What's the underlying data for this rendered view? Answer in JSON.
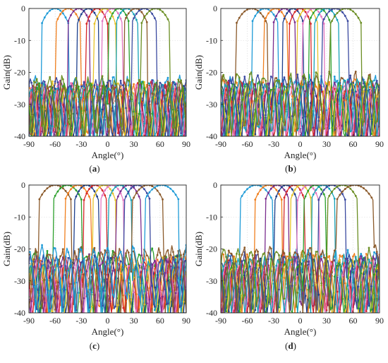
{
  "figure": {
    "panels": [
      {
        "label": "(a)",
        "label_parts": [
          "(",
          "a",
          ")"
        ]
      },
      {
        "label": "(b)",
        "label_parts": [
          "(",
          "b",
          ")"
        ]
      },
      {
        "label": "(c)",
        "label_parts": [
          "(",
          "c",
          ")"
        ]
      },
      {
        "label": "(d)",
        "label_parts": [
          "(",
          "d",
          ")"
        ]
      }
    ]
  },
  "chart_data": [
    {
      "panel": "a",
      "type": "line",
      "xlabel": "Angle(°)",
      "ylabel": "Gain(dB)",
      "xlim": [
        -90,
        90
      ],
      "ylim": [
        -40,
        0
      ],
      "xticks": [
        -90,
        -60,
        -30,
        0,
        30,
        60,
        90
      ],
      "yticks": [
        0,
        -10,
        -20,
        -30,
        -40
      ],
      "grid": true,
      "series": [
        {
          "color": "#1f9bd7",
          "peak_angle": -60,
          "beamwidth": 28,
          "sidelobe": -20
        },
        {
          "color": "#f07f1e",
          "peak_angle": -45,
          "beamwidth": 26,
          "sidelobe": -22
        },
        {
          "color": "#7b2d8e",
          "peak_angle": -33,
          "beamwidth": 24,
          "sidelobe": -22
        },
        {
          "color": "#1d3f8c",
          "peak_angle": -22,
          "beamwidth": 23,
          "sidelobe": -23
        },
        {
          "color": "#d62728",
          "peak_angle": -12,
          "beamwidth": 22,
          "sidelobe": -22
        },
        {
          "color": "#e6c229",
          "peak_angle": -3,
          "beamwidth": 22,
          "sidelobe": -22
        },
        {
          "color": "#e377c2",
          "peak_angle": 5,
          "beamwidth": 22,
          "sidelobe": -22
        },
        {
          "color": "#2ca02c",
          "peak_angle": 13,
          "beamwidth": 22,
          "sidelobe": -22
        },
        {
          "color": "#17a2b8",
          "peak_angle": 22,
          "beamwidth": 23,
          "sidelobe": -22
        },
        {
          "color": "#8b5a2b",
          "peak_angle": 32,
          "beamwidth": 25,
          "sidelobe": -22
        },
        {
          "color": "#3b4aa0",
          "peak_angle": 42,
          "beamwidth": 27,
          "sidelobe": -21
        },
        {
          "color": "#6b8e23",
          "peak_angle": 55,
          "beamwidth": 30,
          "sidelobe": -20
        }
      ]
    },
    {
      "panel": "b",
      "type": "line",
      "xlabel": "Angle(°)",
      "ylabel": "Gain(dB)",
      "xlim": [
        -90,
        90
      ],
      "ylim": [
        -40,
        0
      ],
      "xticks": [
        -90,
        -60,
        -30,
        0,
        30,
        60,
        90
      ],
      "yticks": [
        0,
        -10,
        -20,
        -30,
        -40
      ],
      "grid": true,
      "series": [
        {
          "color": "#8b5a2b",
          "peak_angle": -55,
          "beamwidth": 32,
          "sidelobe": -19
        },
        {
          "color": "#1f9bd7",
          "peak_angle": -40,
          "beamwidth": 28,
          "sidelobe": -20
        },
        {
          "color": "#f07f1e",
          "peak_angle": -28,
          "beamwidth": 25,
          "sidelobe": -21
        },
        {
          "color": "#7b2d8e",
          "peak_angle": -18,
          "beamwidth": 23,
          "sidelobe": -22
        },
        {
          "color": "#1d3f8c",
          "peak_angle": -8,
          "beamwidth": 22,
          "sidelobe": -22
        },
        {
          "color": "#d62728",
          "peak_angle": 0,
          "beamwidth": 22,
          "sidelobe": -22
        },
        {
          "color": "#e6c229",
          "peak_angle": 8,
          "beamwidth": 22,
          "sidelobe": -22
        },
        {
          "color": "#e377c2",
          "peak_angle": 15,
          "beamwidth": 22,
          "sidelobe": -22
        },
        {
          "color": "#2ca02c",
          "peak_angle": 22,
          "beamwidth": 23,
          "sidelobe": -22
        },
        {
          "color": "#17a2b8",
          "peak_angle": 30,
          "beamwidth": 25,
          "sidelobe": -21
        },
        {
          "color": "#3b4aa0",
          "peak_angle": 40,
          "beamwidth": 28,
          "sidelobe": -20
        },
        {
          "color": "#6b8e23",
          "peak_angle": 52,
          "beamwidth": 32,
          "sidelobe": -19
        }
      ]
    },
    {
      "panel": "c",
      "type": "line",
      "xlabel": "Angle(°)",
      "ylabel": "Gain(dB)",
      "xlim": [
        -90,
        90
      ],
      "ylim": [
        -40,
        0
      ],
      "xticks": [
        -90,
        -60,
        -30,
        0,
        30,
        60,
        90
      ],
      "yticks": [
        0,
        -10,
        -20,
        -30,
        -40
      ],
      "grid": true,
      "series": [
        {
          "color": "#8b5a2b",
          "peak_angle": -60,
          "beamwidth": 34,
          "sidelobe": -18
        },
        {
          "color": "#2ca02c",
          "peak_angle": -46,
          "beamwidth": 30,
          "sidelobe": -19
        },
        {
          "color": "#f07f1e",
          "peak_angle": -34,
          "beamwidth": 27,
          "sidelobe": -21
        },
        {
          "color": "#1d3f8c",
          "peak_angle": -24,
          "beamwidth": 25,
          "sidelobe": -21
        },
        {
          "color": "#d62728",
          "peak_angle": -14,
          "beamwidth": 24,
          "sidelobe": -22
        },
        {
          "color": "#e6c229",
          "peak_angle": -4,
          "beamwidth": 24,
          "sidelobe": -22
        },
        {
          "color": "#e377c2",
          "peak_angle": 5,
          "beamwidth": 24,
          "sidelobe": -22
        },
        {
          "color": "#17a2b8",
          "peak_angle": 14,
          "beamwidth": 24,
          "sidelobe": -22
        },
        {
          "color": "#7b2d8e",
          "peak_angle": 24,
          "beamwidth": 25,
          "sidelobe": -21
        },
        {
          "color": "#3b4aa0",
          "peak_angle": 34,
          "beamwidth": 27,
          "sidelobe": -21
        },
        {
          "color": "#8b5a2b",
          "peak_angle": 46,
          "beamwidth": 32,
          "sidelobe": -19
        },
        {
          "color": "#1f9bd7",
          "peak_angle": 62,
          "beamwidth": 36,
          "sidelobe": -18
        }
      ]
    },
    {
      "panel": "d",
      "type": "line",
      "xlabel": "Angle(°)",
      "ylabel": "Gain(dB)",
      "xlim": [
        -90,
        90
      ],
      "ylim": [
        -40,
        0
      ],
      "xticks": [
        -90,
        -60,
        -30,
        0,
        30,
        60,
        90
      ],
      "yticks": [
        0,
        -10,
        -20,
        -30,
        -40
      ],
      "grid": true,
      "series": [
        {
          "color": "#1f9bd7",
          "peak_angle": -50,
          "beamwidth": 34,
          "sidelobe": -19
        },
        {
          "color": "#f07f1e",
          "peak_angle": -36,
          "beamwidth": 28,
          "sidelobe": -20
        },
        {
          "color": "#7b2d8e",
          "peak_angle": -26,
          "beamwidth": 25,
          "sidelobe": -21
        },
        {
          "color": "#1d3f8c",
          "peak_angle": -16,
          "beamwidth": 23,
          "sidelobe": -22
        },
        {
          "color": "#d62728",
          "peak_angle": -7,
          "beamwidth": 22,
          "sidelobe": -22
        },
        {
          "color": "#e6c229",
          "peak_angle": 1,
          "beamwidth": 22,
          "sidelobe": -22
        },
        {
          "color": "#e377c2",
          "peak_angle": 9,
          "beamwidth": 22,
          "sidelobe": -22
        },
        {
          "color": "#2ca02c",
          "peak_angle": 17,
          "beamwidth": 23,
          "sidelobe": -22
        },
        {
          "color": "#17a2b8",
          "peak_angle": 26,
          "beamwidth": 25,
          "sidelobe": -21
        },
        {
          "color": "#3b4aa0",
          "peak_angle": 36,
          "beamwidth": 28,
          "sidelobe": -20
        },
        {
          "color": "#6b8e23",
          "peak_angle": 48,
          "beamwidth": 32,
          "sidelobe": -19
        },
        {
          "color": "#8b5a2b",
          "peak_angle": 62,
          "beamwidth": 38,
          "sidelobe": -18
        }
      ]
    }
  ]
}
